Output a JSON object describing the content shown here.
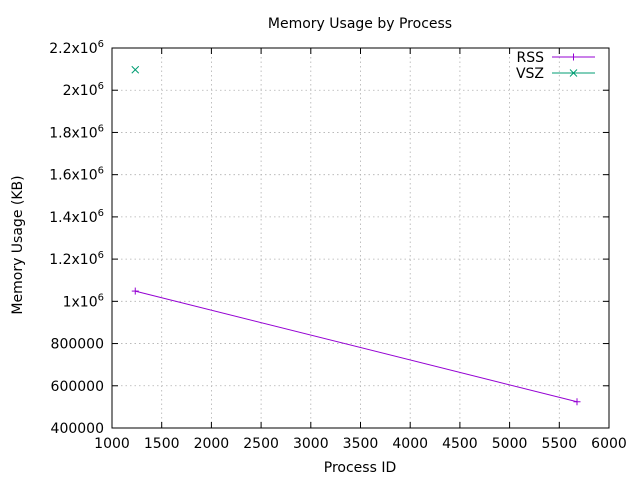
{
  "chart_data": {
    "type": "line",
    "title": "Memory Usage by Process",
    "xlabel": "Process ID",
    "ylabel": "Memory Usage (KB)",
    "xlim": [
      1000,
      6000
    ],
    "ylim": [
      400000,
      2200000
    ],
    "grid": true,
    "legend_position": "top-right",
    "x_ticks": [
      "1000",
      "1500",
      "2000",
      "2500",
      "3000",
      "3500",
      "4000",
      "4500",
      "5000",
      "5500",
      "6000"
    ],
    "x_tick_values": [
      1000,
      1500,
      2000,
      2500,
      3000,
      3500,
      4000,
      4500,
      5000,
      5500,
      6000
    ],
    "y_ticks": [
      {
        "value": 400000,
        "mantissa": "400000",
        "exp": ""
      },
      {
        "value": 600000,
        "mantissa": "600000",
        "exp": ""
      },
      {
        "value": 800000,
        "mantissa": "800000",
        "exp": ""
      },
      {
        "value": 1000000,
        "mantissa": "1x10",
        "exp": "6"
      },
      {
        "value": 1200000,
        "mantissa": "1.2x10",
        "exp": "6"
      },
      {
        "value": 1400000,
        "mantissa": "1.4x10",
        "exp": "6"
      },
      {
        "value": 1600000,
        "mantissa": "1.6x10",
        "exp": "6"
      },
      {
        "value": 1800000,
        "mantissa": "1.8x10",
        "exp": "6"
      },
      {
        "value": 2000000,
        "mantissa": "2x10",
        "exp": "6"
      },
      {
        "value": 2200000,
        "mantissa": "2.2x10",
        "exp": "6"
      }
    ],
    "series": [
      {
        "name": "RSS",
        "color": "#9400d3",
        "marker": "plus",
        "line": true,
        "points": [
          {
            "x": 1234,
            "y": 1048576
          },
          {
            "x": 5678,
            "y": 524288
          }
        ]
      },
      {
        "name": "VSZ",
        "color": "#009e73",
        "marker": "cross",
        "line": true,
        "points": [
          {
            "x": 1234,
            "y": 2097152
          }
        ]
      }
    ]
  }
}
